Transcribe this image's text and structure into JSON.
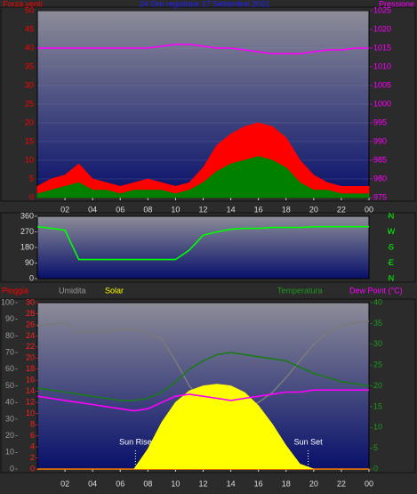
{
  "chart_data": [
    {
      "type": "line",
      "title": "24 Ore registrate 17 Settembre 2021",
      "y_label": "Forza venti",
      "x": [
        0,
        1,
        2,
        3,
        4,
        5,
        6,
        7,
        8,
        9,
        10,
        11,
        12,
        13,
        14,
        15,
        16,
        17,
        18,
        19,
        20,
        21,
        22,
        23,
        24
      ],
      "xlim": [
        0,
        24
      ],
      "xticks": [
        {
          "value": 2,
          "label": "02"
        },
        {
          "value": 4,
          "label": "04"
        },
        {
          "value": 6,
          "label": "06"
        },
        {
          "value": 8,
          "label": "08"
        },
        10,
        12,
        14,
        16,
        18,
        20,
        22,
        {
          "value": 24,
          "label": "00"
        }
      ],
      "ylim": [
        0,
        50
      ],
      "yticks": [
        0,
        5,
        10,
        15,
        20,
        25,
        30,
        35,
        40,
        45,
        50
      ],
      "y_color": "#ff0000",
      "y2lim": [
        975,
        1025
      ],
      "y2ticks": [
        975,
        980,
        985,
        990,
        995,
        1000,
        1005,
        1010,
        1015,
        1020,
        1025
      ],
      "y2_color": "#ff00ff",
      "grid": true,
      "series": [
        {
          "kind": "area",
          "color": "#ff0000",
          "values": [
            3,
            5,
            6,
            9,
            5,
            4,
            3,
            4,
            5,
            4,
            3,
            4,
            8,
            14,
            17,
            19,
            20,
            19,
            16,
            10,
            6,
            4,
            3,
            3,
            3
          ]
        },
        {
          "kind": "area",
          "color": "#008000",
          "values": [
            1,
            2,
            3,
            4,
            2,
            2,
            1,
            2,
            2,
            2,
            1,
            2,
            4,
            7,
            9,
            10,
            11,
            10,
            8,
            4,
            2,
            2,
            1,
            1,
            1
          ]
        },
        {
          "name": "Pressione",
          "kind": "line",
          "axis": "y2",
          "color": "#ff00ff",
          "values": [
            1015,
            1015,
            1015,
            1015,
            1015,
            1015,
            1015,
            1015,
            1015,
            1015.5,
            1016,
            1016,
            1015.5,
            1015,
            1015,
            1014.5,
            1014,
            1013.5,
            1013.5,
            1013.5,
            1014,
            1014.5,
            1014.5,
            1015,
            1015
          ]
        }
      ]
    },
    {
      "type": "line",
      "x": [
        0,
        1,
        2,
        3,
        4,
        5,
        6,
        7,
        8,
        9,
        10,
        11,
        12,
        13,
        14,
        15,
        16,
        17,
        18,
        19,
        20,
        21,
        22,
        23,
        24
      ],
      "xlim": [
        0,
        24
      ],
      "ylim": [
        0,
        360
      ],
      "yticks": [
        0,
        90,
        180,
        270,
        360
      ],
      "y_color": "#dddddd",
      "y2lim": [
        0,
        360
      ],
      "y2ticks": [
        {
          "value": 360,
          "label": "N"
        },
        {
          "value": 270,
          "label": "W"
        },
        {
          "value": 180,
          "label": "S"
        },
        {
          "value": 90,
          "label": "E"
        },
        {
          "value": 0,
          "label": "N"
        }
      ],
      "y2_color": "#00ff00",
      "grid": false,
      "series": [
        {
          "kind": "line",
          "color": "#00ff00",
          "values": [
            300,
            290,
            280,
            110,
            110,
            110,
            110,
            110,
            110,
            110,
            110,
            165,
            250,
            270,
            285,
            290,
            290,
            295,
            295,
            295,
            300,
            300,
            300,
            300,
            300
          ]
        }
      ]
    },
    {
      "type": "line",
      "x": [
        0,
        1,
        2,
        3,
        4,
        5,
        6,
        7,
        8,
        9,
        10,
        11,
        12,
        13,
        14,
        15,
        16,
        17,
        18,
        19,
        20,
        21,
        22,
        23,
        24
      ],
      "xlim": [
        0,
        24
      ],
      "xticks": [
        {
          "value": 2,
          "label": "02"
        },
        {
          "value": 4,
          "label": "04"
        },
        {
          "value": 6,
          "label": "06"
        },
        {
          "value": 8,
          "label": "08"
        },
        10,
        12,
        14,
        16,
        18,
        20,
        22,
        {
          "value": 24,
          "label": "00"
        }
      ],
      "ylim": [
        0,
        100
      ],
      "yticks": [
        0,
        10,
        20,
        30,
        40,
        50,
        60,
        70,
        80,
        90,
        100
      ],
      "y_color": "#9a9a9a",
      "y3lim": [
        0,
        30
      ],
      "y3ticks": [
        0,
        2,
        4,
        6,
        8,
        10,
        12,
        14,
        16,
        18,
        20,
        22,
        24,
        26,
        28,
        30
      ],
      "y3_color": "#ff2020",
      "y2lim": [
        0,
        40
      ],
      "y2ticks": [
        0,
        5,
        10,
        15,
        20,
        25,
        30,
        35,
        40
      ],
      "y2_color": "#1f9a1f",
      "grid": false,
      "series": [
        {
          "name": "Pioggia",
          "kind": "line",
          "axis": "y3",
          "color": "#ff0000",
          "values": [
            0,
            0,
            0,
            0,
            0,
            0,
            0,
            0,
            0,
            0,
            0,
            0,
            0,
            0,
            0,
            0,
            0,
            0,
            0,
            0,
            0,
            0,
            0,
            0,
            0
          ]
        },
        {
          "name": "Umidita",
          "kind": "line",
          "color": "#7a7a7a",
          "values": [
            86,
            87,
            88,
            82,
            83,
            83,
            84,
            84,
            82,
            78,
            65,
            50,
            40,
            35,
            36,
            37,
            40,
            46,
            55,
            65,
            75,
            82,
            86,
            88,
            89
          ]
        },
        {
          "name": "Solar",
          "kind": "area",
          "color": "#ffff00",
          "values": [
            0,
            0,
            0,
            0,
            0,
            0,
            0,
            0,
            12,
            28,
            40,
            47,
            50,
            51,
            50,
            46,
            38,
            27,
            14,
            3,
            0,
            0,
            0,
            0,
            0
          ]
        },
        {
          "name": "Temperatura",
          "kind": "line",
          "axis": "y2",
          "color": "#1a7a1a",
          "values": [
            19.5,
            19,
            18.5,
            18,
            17.5,
            17,
            16.5,
            16.5,
            17,
            18.5,
            21,
            24,
            26,
            27.5,
            28,
            27.5,
            27,
            26.5,
            26,
            24.5,
            23,
            22,
            21,
            20.5,
            20
          ]
        },
        {
          "name": "Dew Point (°C)",
          "kind": "line",
          "axis": "y2",
          "color": "#ff00ff",
          "values": [
            17.5,
            17,
            16.5,
            16,
            15.5,
            15,
            14.5,
            14,
            14.5,
            16,
            17.5,
            18,
            17.5,
            17,
            16.5,
            17,
            17.5,
            18,
            18.5,
            18.5,
            19,
            19,
            19,
            19,
            19
          ]
        }
      ],
      "annotations": [
        {
          "text": "Sun Rise",
          "x": 7.1
        },
        {
          "text": "Sun Set",
          "x": 19.6
        }
      ]
    }
  ]
}
